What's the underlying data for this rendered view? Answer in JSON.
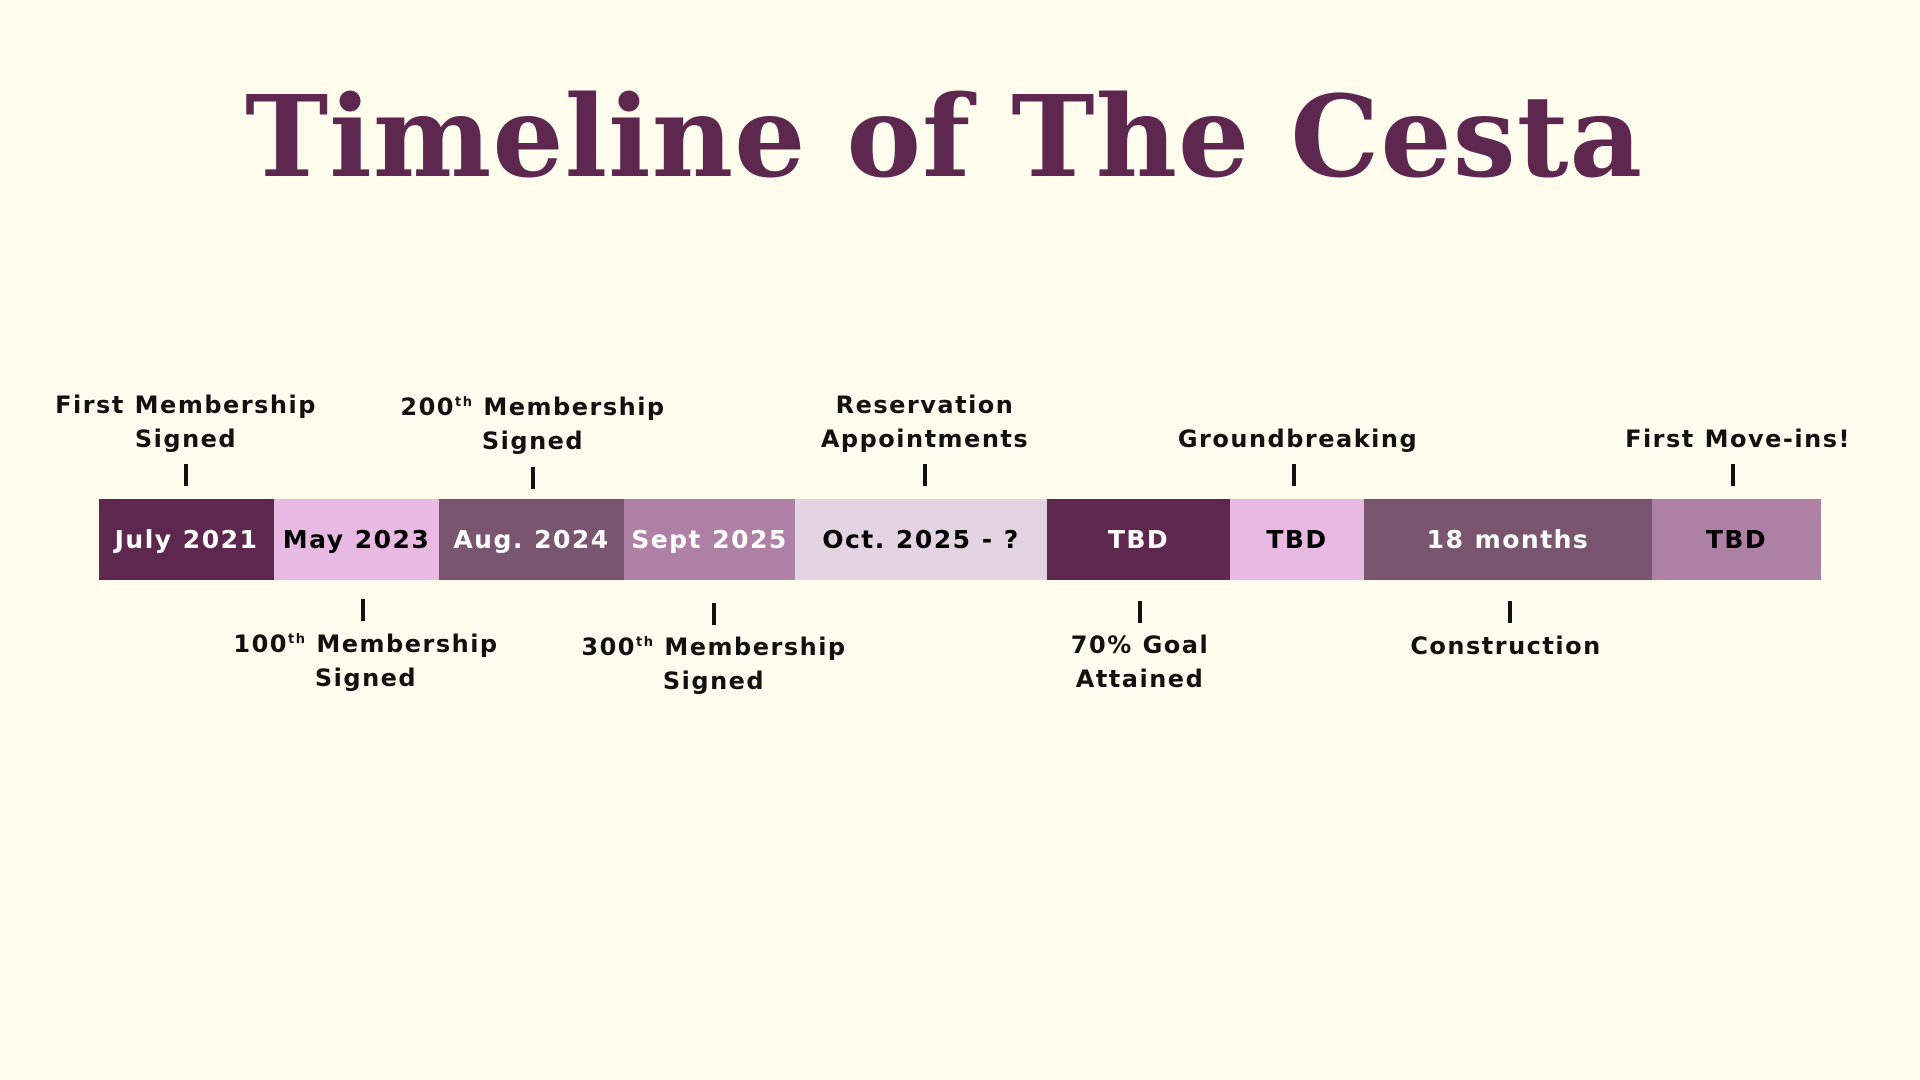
{
  "title": "Timeline of The Cesta",
  "colors": {
    "background": "#FEFCEC",
    "title": "#5E2750",
    "plum_dark": "#5E2750",
    "pink_light": "#E8B9E3",
    "mauve_dark": "#7A5570",
    "mauve_mid": "#AF80A6",
    "lavender_pale": "#E4D3E2"
  },
  "segments": [
    {
      "label": "July 2021",
      "color": "#5E2750"
    },
    {
      "label": "May 2023",
      "color": "#E8B9E3"
    },
    {
      "label": "Aug. 2024",
      "color": "#7A5570"
    },
    {
      "label": "Sept 2025",
      "color": "#AF80A6"
    },
    {
      "label": "Oct. 2025 - ?",
      "color": "#E4D3E2"
    },
    {
      "label": "TBD",
      "color": "#5E2750"
    },
    {
      "label": "TBD",
      "color": "#E8B9E3"
    },
    {
      "label": "18 months",
      "color": "#7A5570"
    },
    {
      "label": "TBD",
      "color": "#AF80A6"
    }
  ],
  "above_labels": [
    {
      "line1": "First Membership",
      "line2": "Signed"
    },
    {
      "ordinal": "200",
      "suffix": "th",
      "line1_rest": " Membership",
      "line2": "Signed"
    },
    {
      "line1": "Reservation",
      "line2": "Appointments"
    },
    {
      "line1": "Groundbreaking"
    },
    {
      "line1": "First Move-ins!"
    }
  ],
  "below_labels": [
    {
      "ordinal": "100",
      "suffix": "th",
      "line1_rest": " Membership",
      "line2": "Signed"
    },
    {
      "ordinal": "300",
      "suffix": "th",
      "line1_rest": " Membership",
      "line2": "Signed"
    },
    {
      "line1": "70% Goal",
      "line2": "Attained"
    },
    {
      "line1": "Construction"
    }
  ]
}
